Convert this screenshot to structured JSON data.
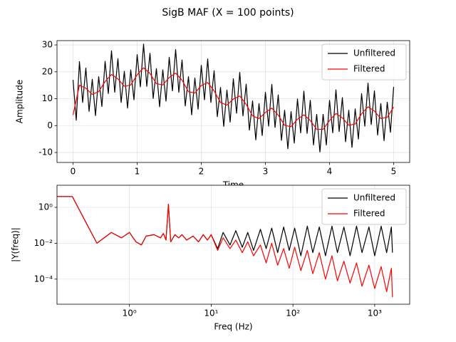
{
  "title": "SigB MAF (X = 100 points)",
  "chart_data": [
    {
      "type": "line",
      "xlabel": "Time",
      "ylabel": "Amplitude",
      "xlim": [
        -0.25,
        5.25
      ],
      "ylim": [
        -13.7,
        31.6
      ],
      "xticks": [
        0,
        1,
        2,
        3,
        4,
        5
      ],
      "yticks": [
        -10,
        0,
        10,
        20,
        30
      ],
      "grid": true,
      "legend": "upper right",
      "series": [
        {
          "name": "Unfiltered",
          "color": "#000000",
          "x": [
            0,
            0.05,
            0.1,
            0.15,
            0.2,
            0.25,
            0.3,
            0.35,
            0.4,
            0.45,
            0.5,
            0.55,
            0.6,
            0.65,
            0.7,
            0.75,
            0.8,
            0.85,
            0.9,
            0.95,
            1,
            1.05,
            1.1,
            1.15,
            1.2,
            1.25,
            1.3,
            1.35,
            1.4,
            1.45,
            1.5,
            1.55,
            1.6,
            1.65,
            1.7,
            1.75,
            1.8,
            1.85,
            1.9,
            1.95,
            2,
            2.05,
            2.1,
            2.15,
            2.2,
            2.25,
            2.3,
            2.35,
            2.4,
            2.45,
            2.5,
            2.55,
            2.6,
            2.65,
            2.7,
            2.75,
            2.8,
            2.85,
            2.9,
            2.95,
            3,
            3.05,
            3.1,
            3.15,
            3.2,
            3.25,
            3.3,
            3.35,
            3.4,
            3.45,
            3.5,
            3.55,
            3.6,
            3.65,
            3.7,
            3.75,
            3.8,
            3.85,
            3.9,
            3.95,
            4,
            4.05,
            4.1,
            4.15,
            4.2,
            4.25,
            4.3,
            4.35,
            4.4,
            4.45,
            4.5,
            4.55,
            4.6,
            4.65,
            4.7,
            4.75,
            4.8,
            4.85,
            4.9,
            4.95,
            5
          ],
          "values": [
            17,
            2,
            23.8,
            8.6,
            21.4,
            5.3,
            17.2,
            3.7,
            18.2,
            7.1,
            23.9,
            11.9,
            27.8,
            12.4,
            24.9,
            8.6,
            20.2,
            6.5,
            20.7,
            9.6,
            26.4,
            14.4,
            30.3,
            14.6,
            26.9,
            10.1,
            21.2,
            7,
            20.7,
            9.1,
            25.4,
            12.9,
            28.3,
            12.4,
            24.4,
            7.3,
            18.2,
            4,
            17.7,
            6.1,
            22.4,
            9.6,
            24.8,
            8.6,
            20.4,
            3.3,
            14.2,
            -0.3,
            13.2,
            1.3,
            17.4,
            4.6,
            19.8,
            3.6,
            15.4,
            -1.7,
            9.2,
            -5.3,
            8.2,
            -3.7,
            12.4,
            -0.2,
            15.3,
            -0.7,
            11.4,
            -5.5,
            5.7,
            -8.6,
            5.2,
            -6.5,
            9.9,
            -2.7,
            12.8,
            -2.9,
            9.4,
            -7.2,
            4.2,
            -9.8,
            4.2,
            -7.2,
            9.4,
            -2.7,
            13.3,
            -2.2,
            10.4,
            -6,
            5.7,
            -8.1,
            6.2,
            -5,
            11.9,
            -0.2,
            15.8,
            0.4,
            12.9,
            -3.5,
            8.2,
            -5.6,
            8.7,
            -2.5,
            14.4
          ]
        },
        {
          "name": "Filtered",
          "color": "#ff0000",
          "x": [
            0,
            0.1,
            0.2,
            0.3,
            0.4,
            0.5,
            0.6,
            0.7,
            0.8,
            0.9,
            1,
            1.1,
            1.2,
            1.3,
            1.4,
            1.5,
            1.6,
            1.7,
            1.8,
            1.9,
            2,
            2.1,
            2.2,
            2.3,
            2.4,
            2.5,
            2.6,
            2.7,
            2.8,
            2.9,
            3,
            3.1,
            3.2,
            3.3,
            3.4,
            3.5,
            3.6,
            3.7,
            3.8,
            3.9,
            4,
            4.1,
            4.2,
            4.3,
            4.4,
            4.5,
            4.6,
            4.7,
            4.8,
            4.9,
            5
          ],
          "values": [
            4,
            15,
            13.9,
            11.6,
            12.6,
            16.4,
            19,
            17.4,
            14.6,
            15.1,
            18.9,
            21.5,
            19.4,
            15.6,
            15.1,
            17.9,
            19.5,
            16.9,
            12.6,
            12.1,
            14.9,
            16,
            12.9,
            8.6,
            7.6,
            9.9,
            11,
            7.9,
            3.6,
            2.6,
            4.9,
            6.5,
            3.9,
            0.1,
            -0.4,
            2.4,
            4,
            1.9,
            -1.4,
            -1.4,
            1.9,
            4.5,
            2.9,
            0.1,
            0.6,
            4.4,
            7,
            5.4,
            2.6,
            3.1,
            6.9
          ]
        }
      ]
    },
    {
      "type": "line",
      "xlabel": "Freq (Hz)",
      "ylabel": "|Y(freq)|",
      "xscale": "log",
      "yscale": "log",
      "xlim": [
        0.13,
        2680
      ],
      "ylim": [
        4e-06,
        17
      ],
      "xticks": [
        {
          "value": 1,
          "label": "10⁰"
        },
        {
          "value": 10,
          "label": "10¹"
        },
        {
          "value": 100,
          "label": "10²"
        },
        {
          "value": 1000,
          "label": "10³"
        }
      ],
      "yticks": [
        {
          "value": 0.0001,
          "label": "10⁻⁴"
        },
        {
          "value": 0.01,
          "label": "10⁻²"
        },
        {
          "value": 1,
          "label": "10⁰"
        }
      ],
      "grid": true,
      "legend": "upper right",
      "series": [
        {
          "name": "Unfiltered",
          "color": "#000000",
          "x": [
            0.13,
            0.2,
            0.4,
            0.6,
            0.8,
            1.0,
            1.2,
            1.4,
            1.6,
            2.0,
            2.4,
            2.6,
            2.8,
            3.0,
            3.2,
            3.6,
            4.0,
            4.4,
            5,
            6,
            7,
            8,
            9,
            10,
            12,
            14,
            17,
            20,
            24,
            28,
            33,
            40,
            47,
            55,
            65,
            77,
            90,
            105,
            125,
            150,
            175,
            210,
            250,
            300,
            350,
            420,
            500,
            600,
            700,
            850,
            1000,
            1200,
            1400,
            1600,
            1650
          ],
          "values": [
            4,
            4,
            0.01,
            0.04,
            0.02,
            0.04,
            0.012,
            0.008,
            0.025,
            0.03,
            0.02,
            0.035,
            0.015,
            1.5,
            0.012,
            0.03,
            0.02,
            0.03,
            0.015,
            0.025,
            0.012,
            0.03,
            0.015,
            0.03,
            0.005,
            0.04,
            0.008,
            0.05,
            0.006,
            0.04,
            0.004,
            0.06,
            0.005,
            0.07,
            0.003,
            0.08,
            0.004,
            0.07,
            0.002,
            0.09,
            0.003,
            0.08,
            0.002,
            0.09,
            0.003,
            0.08,
            0.002,
            0.09,
            0.003,
            0.08,
            0.002,
            0.09,
            0.003,
            0.08,
            0.003
          ]
        },
        {
          "name": "Filtered",
          "color": "#ff0000",
          "x": [
            0.13,
            0.2,
            0.4,
            0.6,
            0.8,
            1.0,
            1.2,
            1.4,
            1.6,
            2.0,
            2.4,
            2.6,
            2.8,
            3.0,
            3.2,
            3.6,
            4.0,
            4.4,
            5,
            6,
            7,
            8,
            9,
            10,
            12,
            14,
            17,
            20,
            24,
            28,
            33,
            40,
            47,
            55,
            65,
            77,
            90,
            105,
            125,
            150,
            175,
            210,
            250,
            300,
            350,
            420,
            500,
            600,
            700,
            850,
            1000,
            1200,
            1400,
            1600,
            1650
          ],
          "values": [
            4,
            4,
            0.01,
            0.04,
            0.02,
            0.04,
            0.012,
            0.008,
            0.025,
            0.03,
            0.02,
            0.035,
            0.015,
            1.5,
            0.012,
            0.03,
            0.02,
            0.03,
            0.015,
            0.025,
            0.012,
            0.03,
            0.015,
            0.03,
            0.004,
            0.02,
            0.005,
            0.015,
            0.003,
            0.012,
            0.002,
            0.008,
            0.0008,
            0.01,
            0.0006,
            0.005,
            0.0004,
            0.006,
            0.0003,
            0.004,
            0.0002,
            0.003,
            0.0001,
            0.002,
            8e-05,
            0.001,
            6e-05,
            0.0008,
            4e-05,
            0.0006,
            3e-05,
            0.0005,
            2e-05,
            0.0004,
            1e-05
          ]
        }
      ]
    }
  ]
}
